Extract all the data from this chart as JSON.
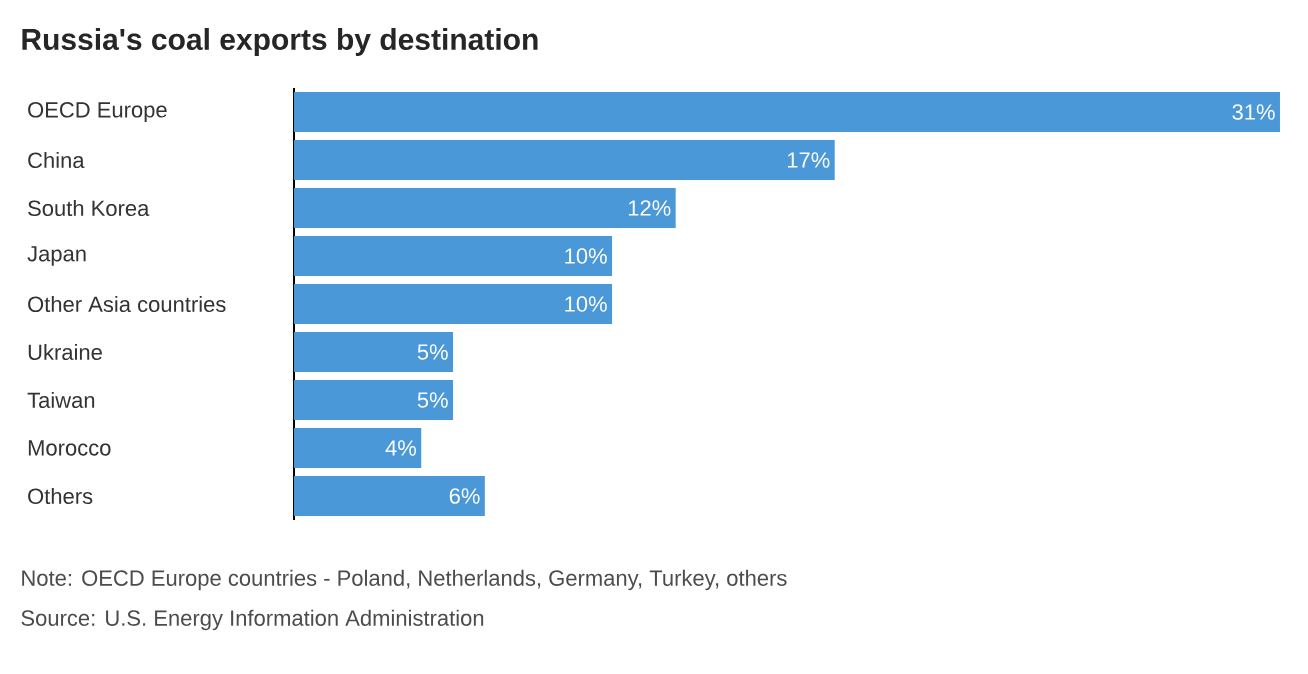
{
  "chart_data": {
    "type": "bar",
    "orientation": "horizontal",
    "title": "Russia's coal exports by destination",
    "categories": [
      "OECD Europe",
      "China",
      "South Korea",
      "Japan",
      "Other Asia countries",
      "Ukraine",
      "Taiwan",
      "Morocco",
      "Others"
    ],
    "values": [
      31,
      17,
      12,
      10,
      10,
      5,
      5,
      4,
      6
    ],
    "value_labels": [
      "31%",
      "17%",
      "12%",
      "10%",
      "10%",
      "5%",
      "5%",
      "4%",
      "6%"
    ],
    "color": "#4a98d8",
    "annotations": [
      "Note: OECD Europe countries - Poland, Netherlands, Germany, Turkey, others",
      "Source: U.S. Energy Information Administration"
    ]
  }
}
